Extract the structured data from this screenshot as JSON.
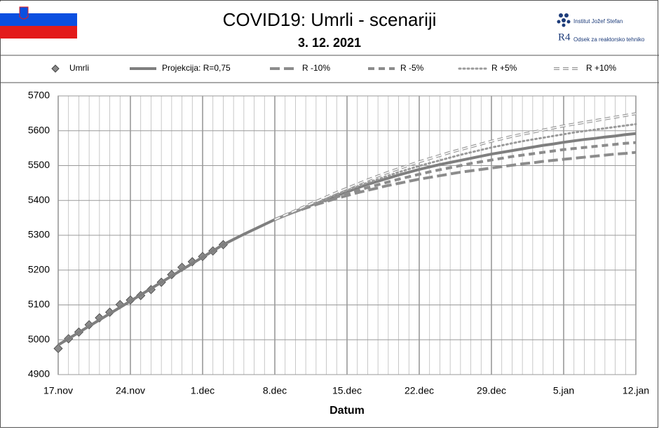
{
  "header": {
    "title": "COVID19: Umrli - scenariji",
    "date": "3. 12. 2021",
    "institute": "Institut Jožef Stefan",
    "department": "Odsek za reaktorsko tehniko",
    "logo": "R4"
  },
  "chart_data": {
    "type": "line",
    "x_label": "Datum",
    "categories": [
      "17.nov",
      null,
      null,
      null,
      null,
      null,
      null,
      "24.nov",
      null,
      null,
      null,
      null,
      null,
      null,
      "1.dec",
      null,
      null,
      null,
      null,
      null,
      null,
      "8.dec",
      null,
      null,
      null,
      null,
      null,
      null,
      "15.dec",
      null,
      null,
      null,
      null,
      null,
      null,
      "22.dec",
      null,
      null,
      null,
      null,
      null,
      null,
      "29.dec",
      null,
      null,
      null,
      null,
      null,
      null,
      "5.jan",
      null,
      null,
      null,
      null,
      null,
      null,
      "12.jan"
    ],
    "ylim": [
      4900,
      5700
    ],
    "yticks": [
      4900,
      5000,
      5100,
      5200,
      5300,
      5400,
      5500,
      5600,
      5700
    ],
    "grid": true,
    "series": [
      {
        "name": "Umrli",
        "color": "#7f7f7f",
        "style": "marker",
        "values": [
          4975,
          5003,
          5022,
          5043,
          5063,
          5079,
          5101,
          5114,
          5127,
          5144,
          5165,
          5187,
          5208,
          5224,
          5239,
          5255,
          5273,
          null,
          null,
          null,
          null,
          null,
          null,
          null,
          null,
          null,
          null,
          null,
          null,
          null,
          null,
          null,
          null,
          null,
          null,
          null,
          null,
          null,
          null,
          null,
          null,
          null,
          null,
          null,
          null,
          null,
          null,
          null,
          null,
          null,
          null,
          null,
          null,
          null,
          null,
          null,
          null
        ]
      },
      {
        "name": "Projekcija: R=0,75",
        "color": "#7f7f7f",
        "style": "solid",
        "values": [
          4985,
          5003,
          5021,
          5039,
          5057,
          5075,
          5093,
          5111,
          5129,
          5147,
          5165,
          5183,
          5201,
          5219,
          5237,
          5255,
          5273,
          5288,
          5303,
          5317,
          5331,
          5345,
          5357,
          5369,
          5381,
          5392,
          5403,
          5414,
          5424,
          5436,
          5446,
          5455,
          5464,
          5473,
          5481,
          5489,
          5496,
          5503,
          5509,
          5515,
          5521,
          5527,
          5533,
          5538,
          5543,
          5548,
          5553,
          5558,
          5562,
          5567,
          5571,
          5575,
          5578,
          5582,
          5585,
          5589,
          5592
        ]
      },
      {
        "name": "R -10%",
        "color": "#8c8c8c",
        "style": "long-dash",
        "values": [
          null,
          null,
          null,
          null,
          null,
          null,
          null,
          null,
          null,
          null,
          null,
          null,
          null,
          null,
          null,
          null,
          null,
          null,
          null,
          null,
          null,
          5345,
          5357,
          5368,
          5378,
          5388,
          5397,
          5406,
          5414,
          5422,
          5429,
          5436,
          5443,
          5449,
          5455,
          5461,
          5466,
          5471,
          5476,
          5481,
          5485,
          5489,
          5493,
          5497,
          5501,
          5505,
          5508,
          5512,
          5515,
          5518,
          5521,
          5524,
          5527,
          5530,
          5533,
          5535,
          5538
        ]
      },
      {
        "name": "R -5%",
        "color": "#8c8c8c",
        "style": "dash",
        "values": [
          null,
          null,
          null,
          null,
          null,
          null,
          null,
          null,
          null,
          null,
          null,
          null,
          null,
          null,
          null,
          null,
          null,
          null,
          null,
          null,
          null,
          5345,
          5357,
          5368,
          5379,
          5390,
          5400,
          5410,
          5419,
          5428,
          5437,
          5445,
          5453,
          5461,
          5468,
          5475,
          5482,
          5488,
          5494,
          5500,
          5506,
          5511,
          5516,
          5521,
          5526,
          5530,
          5534,
          5538,
          5542,
          5546,
          5549,
          5552,
          5555,
          5558,
          5561,
          5564,
          5566
        ]
      },
      {
        "name": "R +5%",
        "color": "#9a9a9a",
        "style": "dot",
        "values": [
          null,
          null,
          null,
          null,
          null,
          null,
          null,
          null,
          null,
          null,
          null,
          null,
          null,
          null,
          null,
          null,
          null,
          null,
          null,
          null,
          null,
          5345,
          5358,
          5370,
          5382,
          5394,
          5406,
          5418,
          5429,
          5440,
          5451,
          5461,
          5471,
          5481,
          5490,
          5499,
          5507,
          5515,
          5523,
          5531,
          5538,
          5545,
          5552,
          5558,
          5564,
          5570,
          5575,
          5580,
          5585,
          5590,
          5595,
          5599,
          5603,
          5607,
          5611,
          5615,
          5619
        ]
      },
      {
        "name": "R +10%",
        "color": "#9a9a9a",
        "style": "double-dash",
        "values": [
          null,
          null,
          null,
          null,
          null,
          null,
          null,
          null,
          null,
          null,
          null,
          null,
          null,
          null,
          null,
          null,
          null,
          null,
          null,
          null,
          null,
          5345,
          5358,
          5371,
          5384,
          5397,
          5410,
          5423,
          5435,
          5447,
          5459,
          5470,
          5481,
          5491,
          5501,
          5511,
          5520,
          5529,
          5538,
          5546,
          5554,
          5562,
          5570,
          5577,
          5584,
          5590,
          5596,
          5602,
          5608,
          5614,
          5619,
          5624,
          5629,
          5634,
          5639,
          5644,
          5649
        ]
      }
    ]
  }
}
